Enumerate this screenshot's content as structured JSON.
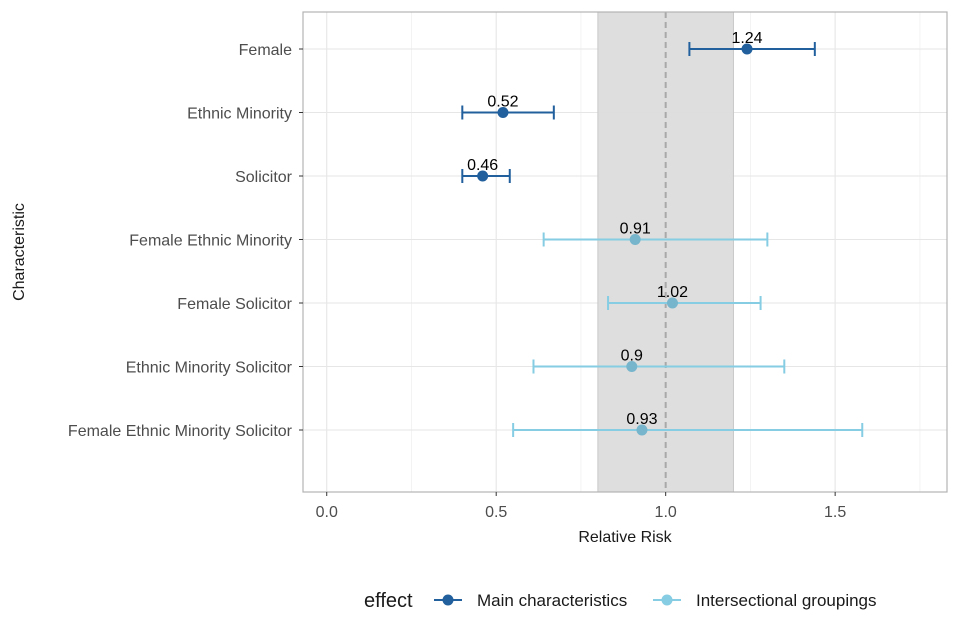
{
  "chart_data": {
    "type": "scatter",
    "subtype": "forest-plot",
    "xlabel": "Relative Risk",
    "ylabel": "Characteristic",
    "xlim": [
      -0.07,
      1.83
    ],
    "x_ticks": [
      0.0,
      0.5,
      1.0,
      1.5
    ],
    "x_tick_labels": [
      "0.0",
      "0.5",
      "1.0",
      "1.5"
    ],
    "reference_line": 1.0,
    "shaded_band": [
      0.8,
      1.2
    ],
    "grid": true,
    "legend": {
      "title": "effect",
      "placement": "bottom",
      "entries": [
        "Main characteristics",
        "Intersectional groupings"
      ]
    },
    "colors": {
      "Main characteristics": "#21609d",
      "Intersectional groupings": "#86cde3",
      "intersectional_point": "#76b5cb",
      "band": "#dcdcdc",
      "reference_line": "#a9a9a9",
      "grid": "#e6e6e6",
      "panel_border": "#b3b3b3"
    },
    "categories": [
      "Female",
      "Ethnic Minority",
      "Solicitor",
      "Female Ethnic Minority",
      "Female Solicitor",
      "Ethnic Minority Solicitor",
      "Female Ethnic Minority Solicitor"
    ],
    "series": [
      {
        "name": "Main characteristics",
        "points": [
          {
            "category": "Female",
            "estimate": 1.24,
            "lower": 1.07,
            "upper": 1.44,
            "label": "1.24"
          },
          {
            "category": "Ethnic Minority",
            "estimate": 0.52,
            "lower": 0.4,
            "upper": 0.67,
            "label": "0.52"
          },
          {
            "category": "Solicitor",
            "estimate": 0.46,
            "lower": 0.4,
            "upper": 0.54,
            "label": "0.46"
          }
        ]
      },
      {
        "name": "Intersectional groupings",
        "points": [
          {
            "category": "Female Ethnic Minority",
            "estimate": 0.91,
            "lower": 0.64,
            "upper": 1.3,
            "label": "0.91"
          },
          {
            "category": "Female Solicitor",
            "estimate": 1.02,
            "lower": 0.83,
            "upper": 1.28,
            "label": "1.02"
          },
          {
            "category": "Ethnic Minority Solicitor",
            "estimate": 0.9,
            "lower": 0.61,
            "upper": 1.35,
            "label": "0.9"
          },
          {
            "category": "Female Ethnic Minority Solicitor",
            "estimate": 0.93,
            "lower": 0.55,
            "upper": 1.58,
            "label": "0.93"
          }
        ]
      }
    ]
  }
}
